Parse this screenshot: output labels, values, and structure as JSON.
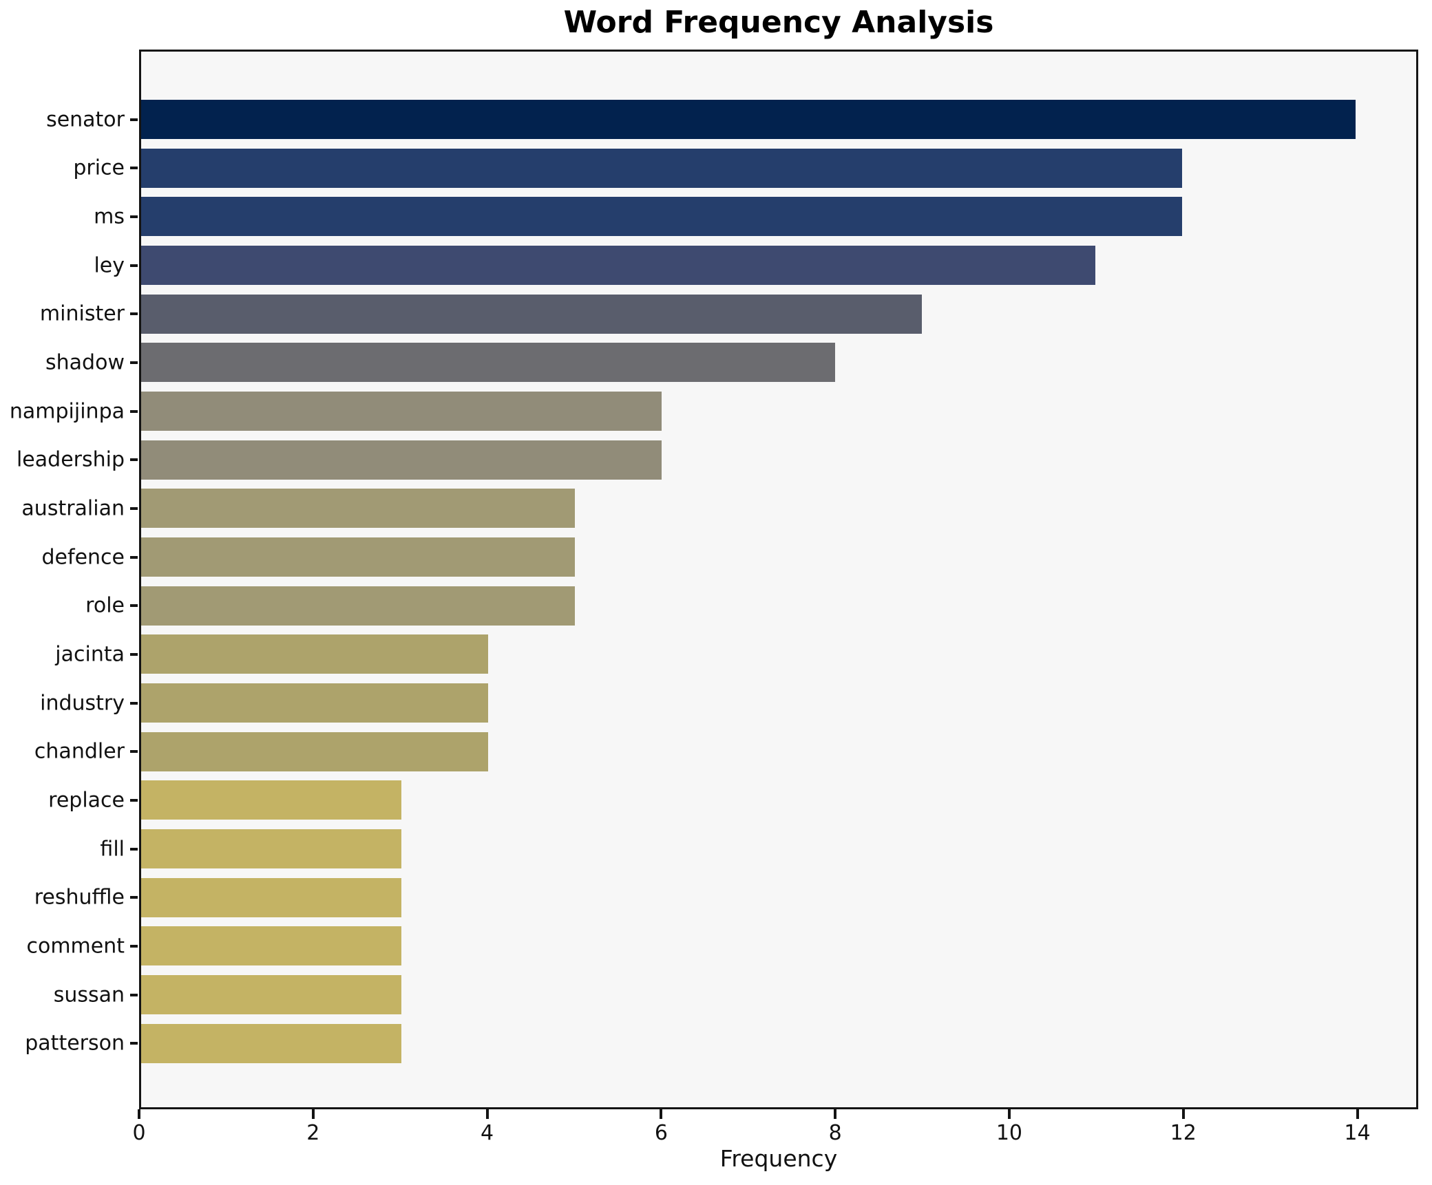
{
  "chart_data": {
    "type": "bar",
    "orientation": "horizontal",
    "title": "Word Frequency Analysis",
    "xlabel": "Frequency",
    "ylabel": "",
    "categories": [
      "senator",
      "price",
      "ms",
      "ley",
      "minister",
      "shadow",
      "nampijinpa",
      "leadership",
      "australian",
      "defence",
      "role",
      "jacinta",
      "industry",
      "chandler",
      "replace",
      "fill",
      "reshuffle",
      "comment",
      "sussan",
      "patterson"
    ],
    "values": [
      14,
      12,
      12,
      11,
      9,
      8,
      6,
      6,
      5,
      5,
      5,
      4,
      4,
      4,
      3,
      3,
      3,
      3,
      3,
      3
    ],
    "bar_colors": [
      "#02224e",
      "#253e6c",
      "#253e6c",
      "#3e4a70",
      "#595d6c",
      "#6c6c70",
      "#918c79",
      "#918c79",
      "#a19a74",
      "#a19a74",
      "#a19a74",
      "#ada36b",
      "#ada36b",
      "#ada36b",
      "#c4b364",
      "#c4b364",
      "#c4b364",
      "#c4b364",
      "#c4b364",
      "#c4b364"
    ],
    "xticks": [
      0,
      2,
      4,
      6,
      8,
      10,
      12,
      14
    ],
    "xlim": [
      0,
      14.7
    ],
    "grid": false,
    "legend": null,
    "plot_background": "#f7f7f7",
    "axis_color": "#141414"
  }
}
